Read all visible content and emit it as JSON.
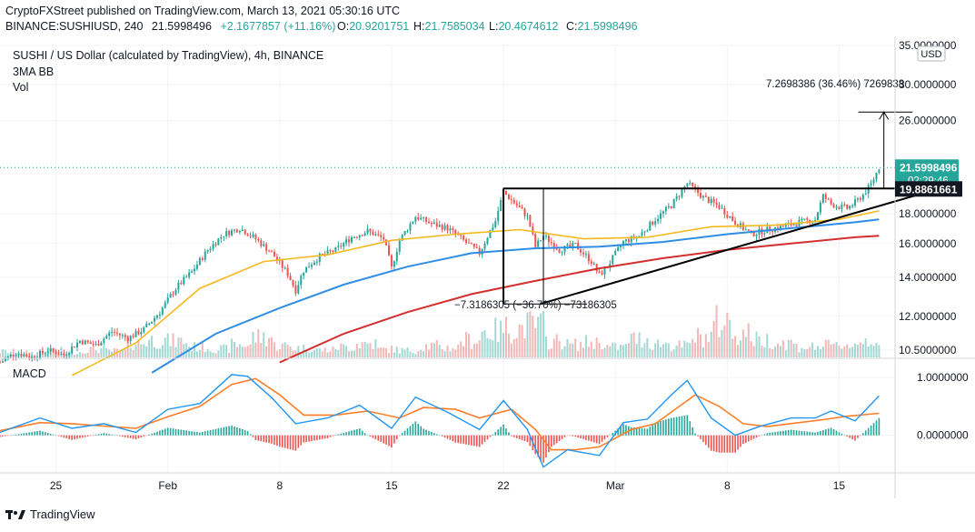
{
  "header": {
    "publisher_line": "CryptoFXStreet published on TradingView.com, March 13, 2021 05:30:16 UTC",
    "symbol_line": "BINANCE:SUSHIUSD, 240",
    "last": "21.5998496",
    "change": "+2.1677857 (+11.16%)",
    "o_label": "O:",
    "o_value": "20.9201751",
    "h_label": "H:",
    "h_value": "21.7585034",
    "l_label": "L:",
    "l_value": "20.4674612",
    "c_label": "C:",
    "c_value": "21.5998496"
  },
  "pane": {
    "title": "SUSHI / US Dollar (calculated by TradingView), 4h, BINANCE",
    "indicator": "3MA BB",
    "volume": "Vol",
    "macd": "MACD",
    "currency": "USD"
  },
  "branding": {
    "name": "TradingView"
  },
  "colors": {
    "up": "#26a69a",
    "down": "#ef5350",
    "ma_fast": "#f5b920",
    "ma_mid": "#2f8de4",
    "ma_slow": "#d32f2f",
    "macd": "#2196f3",
    "signal": "#ff7d28",
    "grid": "#f0f3fa"
  },
  "chart_data": [
    {
      "type": "candlestick",
      "title": "SUSHI / US Dollar (calculated by TradingView), 4h, BINANCE",
      "y_scale": "log",
      "ylim": [
        10.2,
        35
      ],
      "y_ticks": [
        "35.0000000",
        "30.0000000",
        "26.0000000",
        "18.0000000",
        "16.0000000",
        "14.0000000",
        "12.0000000",
        "10.5000000"
      ],
      "x_ticks": [
        "25",
        "Feb",
        "8",
        "15",
        "22",
        "Mar",
        "8",
        "15"
      ],
      "x_tick_days": [
        -7,
        0,
        7,
        14,
        21,
        28,
        35,
        42
      ],
      "x_unit": "days since Feb 1, 2021",
      "xlim": [
        -10.5,
        45.5
      ],
      "last_price_label": "21.5998496",
      "countdown_label": "02:29:46",
      "resistance_label": "19.8861661",
      "resistance_level": 19.886,
      "target_label": "7.2698386 (36.46%) 7269838",
      "drop_label": "−7.3186305 (−36.70%) −73186305",
      "price_path": [
        [
          -10.5,
          10.0
        ],
        [
          -9.5,
          10.4
        ],
        [
          -8.5,
          10.2
        ],
        [
          -7.5,
          10.5
        ],
        [
          -6.5,
          10.3
        ],
        [
          -5.5,
          10.9
        ],
        [
          -4.5,
          10.7
        ],
        [
          -3.5,
          11.3
        ],
        [
          -2.5,
          11.0
        ],
        [
          -1.5,
          11.4
        ],
        [
          -0.5,
          12.2
        ],
        [
          0.5,
          13.4
        ],
        [
          1.5,
          14.3
        ],
        [
          2.5,
          15.6
        ],
        [
          3.5,
          16.6
        ],
        [
          4.5,
          17.0
        ],
        [
          5.5,
          16.3
        ],
        [
          6.5,
          15.4
        ],
        [
          7.5,
          14.2
        ],
        [
          8.0,
          13.3
        ],
        [
          8.5,
          14.4
        ],
        [
          9.5,
          15.2
        ],
        [
          10.5,
          15.6
        ],
        [
          11.5,
          16.4
        ],
        [
          12.5,
          16.8
        ],
        [
          13.5,
          16.3
        ],
        [
          14.0,
          14.5
        ],
        [
          14.5,
          16.2
        ],
        [
          15.5,
          17.8
        ],
        [
          16.5,
          17.3
        ],
        [
          17.5,
          17.0
        ],
        [
          18.5,
          16.2
        ],
        [
          19.5,
          15.4
        ],
        [
          20.5,
          17.5
        ],
        [
          21.0,
          19.6
        ],
        [
          21.5,
          19.0
        ],
        [
          22.5,
          17.8
        ],
        [
          23.0,
          15.8
        ],
        [
          23.5,
          16.5
        ],
        [
          24.5,
          15.6
        ],
        [
          25.5,
          15.9
        ],
        [
          26.5,
          14.9
        ],
        [
          27.0,
          14.1
        ],
        [
          27.5,
          14.6
        ],
        [
          28.5,
          16.1
        ],
        [
          29.5,
          16.5
        ],
        [
          30.5,
          17.6
        ],
        [
          31.5,
          18.6
        ],
        [
          32.5,
          20.3
        ],
        [
          33.5,
          19.2
        ],
        [
          34.5,
          18.5
        ],
        [
          35.5,
          17.4
        ],
        [
          36.5,
          16.6
        ],
        [
          37.5,
          16.9
        ],
        [
          38.5,
          17.1
        ],
        [
          39.5,
          17.4
        ],
        [
          40.5,
          17.6
        ],
        [
          41.0,
          19.3
        ],
        [
          41.5,
          18.7
        ],
        [
          42.0,
          18.5
        ],
        [
          42.5,
          18.4
        ],
        [
          43.0,
          18.8
        ],
        [
          43.5,
          19.4
        ],
        [
          44.0,
          20.2
        ],
        [
          44.5,
          21.6
        ]
      ],
      "ma_fast": [
        [
          -6,
          9.5
        ],
        [
          -2,
          10.8
        ],
        [
          2,
          13.4
        ],
        [
          6,
          14.9
        ],
        [
          10,
          15.3
        ],
        [
          14,
          16.2
        ],
        [
          18,
          16.6
        ],
        [
          22,
          16.9
        ],
        [
          26,
          16.3
        ],
        [
          30,
          16.4
        ],
        [
          34,
          17.1
        ],
        [
          38,
          17.2
        ],
        [
          42,
          17.6
        ],
        [
          44.5,
          18.2
        ]
      ],
      "ma_mid": [
        [
          -1,
          9.6
        ],
        [
          3,
          11.2
        ],
        [
          7,
          12.4
        ],
        [
          11,
          13.6
        ],
        [
          15,
          14.6
        ],
        [
          19,
          15.4
        ],
        [
          23,
          15.7
        ],
        [
          27,
          15.8
        ],
        [
          31,
          16.1
        ],
        [
          35,
          16.6
        ],
        [
          39,
          17.0
        ],
        [
          43,
          17.4
        ],
        [
          44.5,
          17.6
        ]
      ],
      "ma_slow": [
        [
          7,
          10.0
        ],
        [
          11,
          11.2
        ],
        [
          15,
          12.2
        ],
        [
          19,
          13.1
        ],
        [
          23,
          13.8
        ],
        [
          27,
          14.5
        ],
        [
          31,
          15.1
        ],
        [
          35,
          15.6
        ],
        [
          39,
          16.0
        ],
        [
          43,
          16.4
        ],
        [
          44.5,
          16.5
        ]
      ],
      "volume": [
        0.1,
        0.08,
        0.12,
        0.09,
        0.14,
        0.11,
        0.25,
        0.3,
        0.28,
        0.18,
        0.15,
        0.22,
        0.35,
        0.2,
        0.16,
        0.13,
        0.18,
        0.24,
        0.14,
        0.12,
        0.2,
        0.17,
        0.3,
        0.45,
        0.5,
        0.55,
        0.28,
        0.22,
        0.26,
        0.18,
        0.32,
        0.24,
        0.2,
        0.35,
        0.6,
        0.42,
        0.3,
        0.25,
        0.18,
        0.2,
        0.22,
        0.3
      ],
      "annotations": {
        "rect": {
          "x": [
            21.0,
            34.5
          ],
          "y": [
            12.6,
            19.886
          ]
        },
        "rect_divider_x": 23.5,
        "trendline": [
          [
            23.3,
            12.6
          ],
          [
            47.5,
            19.6
          ]
        ],
        "arrow": {
          "x": 44.8,
          "y": [
            19.886,
            26.9
          ],
          "head_span": [
            43.2,
            46.6
          ]
        }
      }
    },
    {
      "type": "line",
      "title": "MACD",
      "ylim": [
        -0.65,
        1.3
      ],
      "y_ticks": [
        "1.0000000",
        "0.0000000"
      ],
      "series": [
        {
          "name": "MACD",
          "values": [
            [
              -10.5,
              0.05
            ],
            [
              -8,
              0.3
            ],
            [
              -6,
              0.12
            ],
            [
              -4,
              0.2
            ],
            [
              -2,
              0.05
            ],
            [
              0,
              0.45
            ],
            [
              2,
              0.55
            ],
            [
              4,
              1.05
            ],
            [
              5,
              1.02
            ],
            [
              6.5,
              0.65
            ],
            [
              8,
              0.2
            ],
            [
              10,
              0.3
            ],
            [
              12,
              0.52
            ],
            [
              14,
              0.12
            ],
            [
              15.5,
              0.66
            ],
            [
              17.5,
              0.4
            ],
            [
              19.5,
              0.1
            ],
            [
              21,
              0.6
            ],
            [
              22.5,
              0.1
            ],
            [
              23.5,
              -0.55
            ],
            [
              25,
              -0.25
            ],
            [
              27,
              -0.35
            ],
            [
              28.5,
              0.22
            ],
            [
              30,
              0.28
            ],
            [
              31.5,
              0.7
            ],
            [
              32.5,
              0.95
            ],
            [
              34,
              0.3
            ],
            [
              35.5,
              0.0
            ],
            [
              37,
              0.15
            ],
            [
              39,
              0.3
            ],
            [
              40.5,
              0.3
            ],
            [
              41.5,
              0.42
            ],
            [
              43,
              0.25
            ],
            [
              44.5,
              0.68
            ]
          ]
        },
        {
          "name": "Signal",
          "values": [
            [
              -10.5,
              0.08
            ],
            [
              -8,
              0.22
            ],
            [
              -6,
              0.2
            ],
            [
              -4,
              0.16
            ],
            [
              -2,
              0.12
            ],
            [
              0,
              0.32
            ],
            [
              2,
              0.5
            ],
            [
              4,
              0.88
            ],
            [
              5.5,
              0.98
            ],
            [
              7,
              0.7
            ],
            [
              8.5,
              0.35
            ],
            [
              10.5,
              0.35
            ],
            [
              12.5,
              0.42
            ],
            [
              14.5,
              0.3
            ],
            [
              16,
              0.48
            ],
            [
              18,
              0.45
            ],
            [
              19.5,
              0.3
            ],
            [
              21.5,
              0.45
            ],
            [
              23,
              0.1
            ],
            [
              24,
              -0.25
            ],
            [
              25.5,
              -0.25
            ],
            [
              27,
              -0.2
            ],
            [
              29,
              0.1
            ],
            [
              30.5,
              0.2
            ],
            [
              32,
              0.5
            ],
            [
              33,
              0.7
            ],
            [
              34.5,
              0.5
            ],
            [
              36,
              0.2
            ],
            [
              37.5,
              0.15
            ],
            [
              39.5,
              0.22
            ],
            [
              41,
              0.27
            ],
            [
              42.5,
              0.33
            ],
            [
              44.5,
              0.38
            ]
          ]
        }
      ]
    }
  ]
}
